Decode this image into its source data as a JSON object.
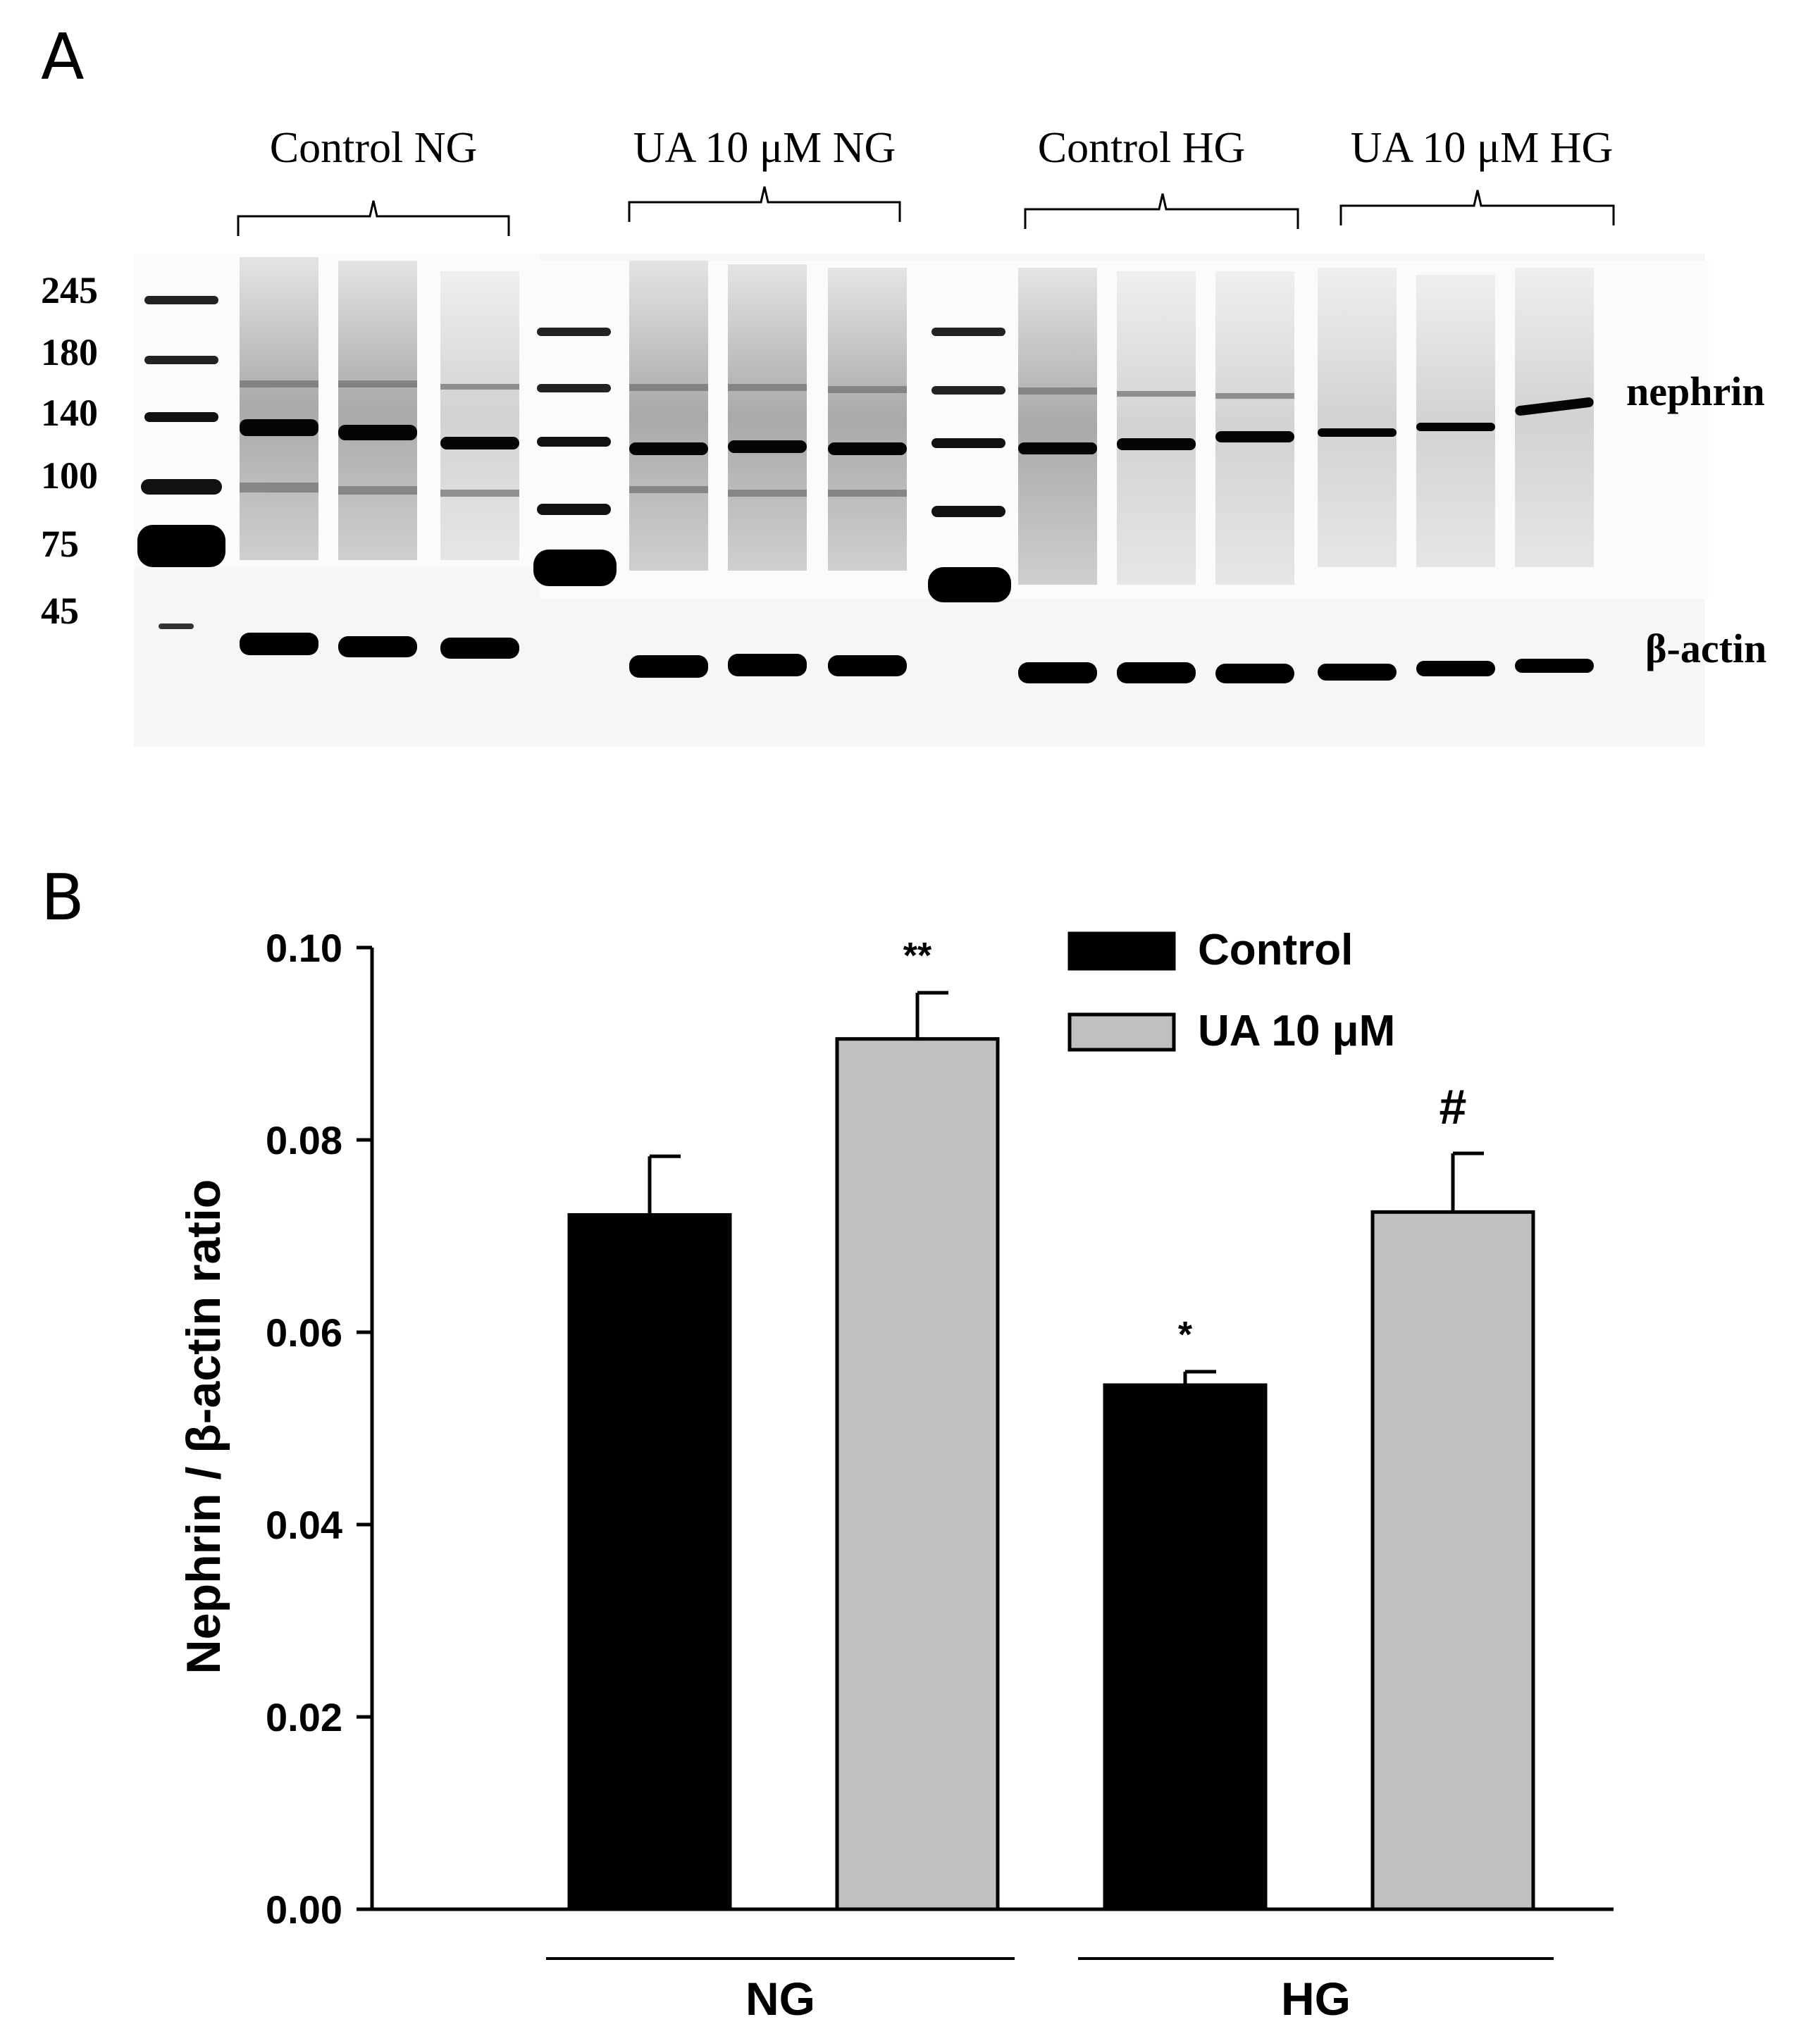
{
  "panel_a": {
    "label": "A",
    "lane_groups": [
      "Control NG",
      "UA 10 μM NG",
      "Control HG",
      "UA 10 μM HG"
    ],
    "mw_markers": [
      "245",
      "180",
      "140",
      "100",
      "75",
      "45"
    ],
    "protein_labels": [
      "nephrin",
      "β-actin"
    ]
  },
  "panel_b": {
    "label": "B"
  },
  "chart_data": {
    "type": "bar",
    "categories": [
      "NG",
      "HG"
    ],
    "series": [
      {
        "name": "Control",
        "color": "#000000",
        "values": [
          0.0722,
          0.0545
        ],
        "errors": [
          0.0061,
          0.0014
        ],
        "annotations": [
          "",
          "*"
        ]
      },
      {
        "name": "UA 10 μM",
        "color": "#c0c0c0",
        "values": [
          0.0905,
          0.0725
        ],
        "errors": [
          0.0048,
          0.0061
        ],
        "annotations": [
          "**",
          "#"
        ]
      }
    ],
    "ylabel": "Nephrin / β-actin ratio",
    "xlabel": "",
    "ylim": [
      0,
      0.1
    ],
    "yticks": [
      "0.00",
      "0.02",
      "0.04",
      "0.06",
      "0.08",
      "0.10"
    ],
    "legend_position": "top-right"
  }
}
